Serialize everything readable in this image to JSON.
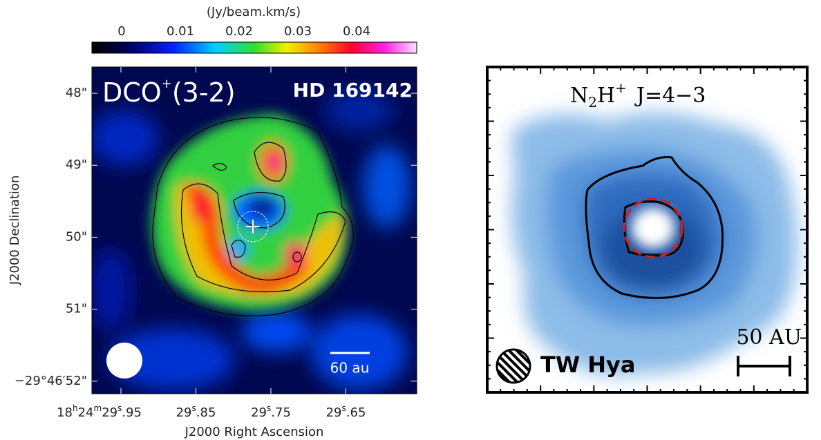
{
  "colorbar": {
    "label": "(Jy/beam.km/s)",
    "ticks": [
      "0",
      "0.01",
      "0.02",
      "0.03",
      "0.04"
    ]
  },
  "left_panel": {
    "line": [
      "DCO",
      "+",
      "(3-2)"
    ],
    "source": "HD 169142",
    "y_axis_label": "J2000 Declination",
    "x_axis_label": "J2000 Right Ascension",
    "y_ticks": [
      "48\"",
      "49\"",
      "50\"",
      "51\"",
      "−29°46′52\""
    ],
    "x_ticks": [
      [
        "18",
        "h",
        "24",
        "m",
        "29",
        "s",
        ".95"
      ],
      [
        "29",
        "s",
        ".85"
      ],
      [
        "29",
        "s",
        ".75"
      ],
      [
        "29",
        "s",
        ".65"
      ]
    ],
    "scale_bar": "60 au"
  },
  "right_panel": {
    "line": [
      "N",
      "2",
      "H",
      "+",
      "J=4−3"
    ],
    "source": "TW Hya",
    "scale_bar": "50 AU"
  }
}
